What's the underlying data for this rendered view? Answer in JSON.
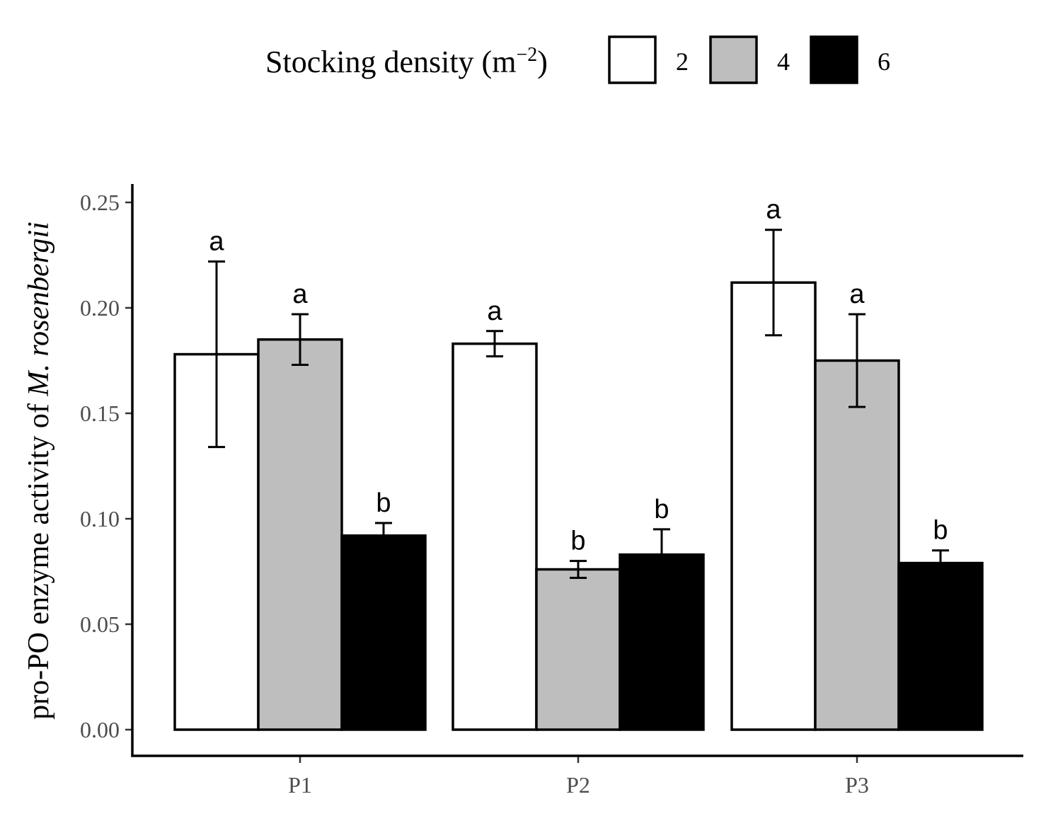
{
  "chart_data": {
    "type": "bar",
    "categories": [
      "P1",
      "P2",
      "P3"
    ],
    "series": [
      {
        "name": "2",
        "fill": "#ffffff",
        "values": [
          0.178,
          0.183,
          0.212
        ],
        "errors": [
          0.044,
          0.006,
          0.025
        ],
        "letters": [
          "a",
          "a",
          "a"
        ]
      },
      {
        "name": "4",
        "fill": "#bebebe",
        "values": [
          0.185,
          0.076,
          0.175
        ],
        "errors": [
          0.012,
          0.004,
          0.022
        ],
        "letters": [
          "a",
          "b",
          "a"
        ]
      },
      {
        "name": "6",
        "fill": "#000000",
        "values": [
          0.092,
          0.083,
          0.079
        ],
        "errors": [
          0.006,
          0.012,
          0.006
        ],
        "letters": [
          "b",
          "b",
          "b"
        ]
      }
    ],
    "legend": {
      "title_main": "Stocking density (m",
      "title_sup": "−2",
      "title_close": ")",
      "position": "top"
    },
    "ylabel": "pro-PO enzyme activity of",
    "ylabel_italic": "M. rosenbergii",
    "xlabel": "",
    "ylim": [
      0,
      0.26
    ],
    "yticks": [
      0,
      0.05,
      0.1,
      0.15,
      0.2,
      0.25
    ],
    "ytick_labels": [
      "0.00",
      "0.05",
      "0.10",
      "0.15",
      "0.20",
      "0.25"
    ],
    "grid": false,
    "colors": {
      "axis": "#000000",
      "tick_text": "#4d4d4d",
      "bar_outline": "#000000"
    }
  }
}
